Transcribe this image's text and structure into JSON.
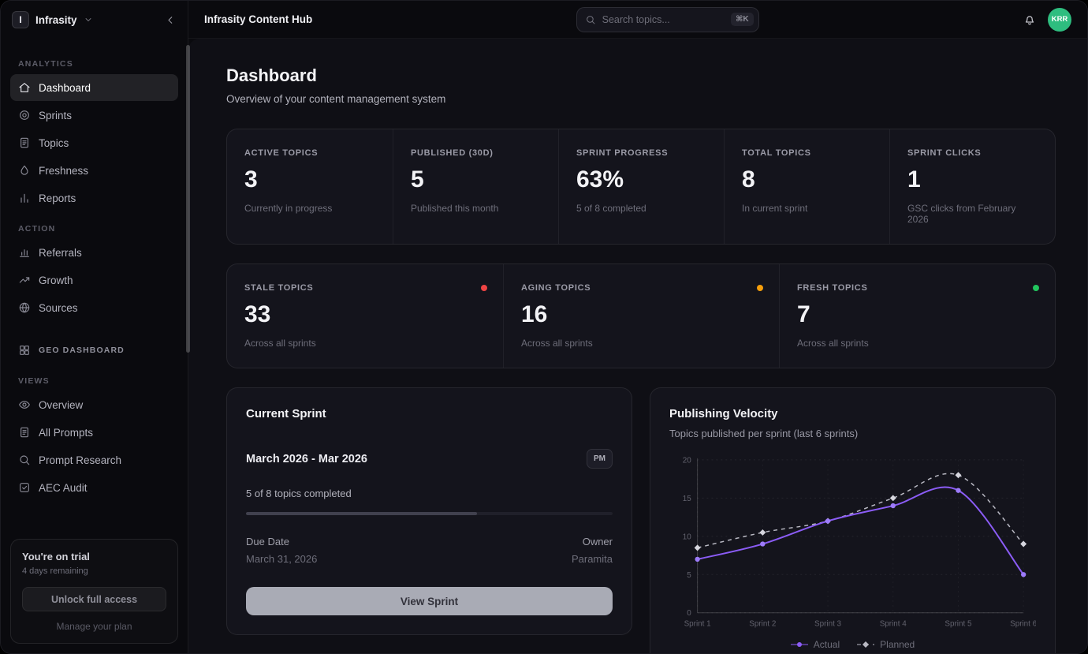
{
  "icons": {
    "search": "search",
    "bell": "bell",
    "workspace_chevron": "chevdown",
    "collapse": "chevleft"
  },
  "topbar": {
    "logo_letter": "I",
    "workspace": "Infrasity",
    "app_title": "Infrasity Content Hub",
    "search_placeholder": "Search topics...",
    "search_shortcut": "⌘K",
    "avatar": "KRR"
  },
  "sidebar": {
    "sections": [
      {
        "label": "ANALYTICS",
        "items": [
          {
            "label": "Dashboard",
            "icon": "home",
            "active": true
          },
          {
            "label": "Sprints",
            "icon": "target"
          },
          {
            "label": "Topics",
            "icon": "doc"
          },
          {
            "label": "Freshness",
            "icon": "drop"
          },
          {
            "label": "Reports",
            "icon": "bars"
          }
        ]
      },
      {
        "label": "ACTION",
        "items": [
          {
            "label": "Referrals",
            "icon": "chart"
          },
          {
            "label": "Growth",
            "icon": "trend"
          },
          {
            "label": "Sources",
            "icon": "globe"
          }
        ]
      }
    ],
    "geo": {
      "label": "GEO DASHBOARD",
      "icon": "grid"
    },
    "views": {
      "label": "VIEWS",
      "items": [
        {
          "label": "Overview",
          "icon": "eye"
        },
        {
          "label": "All Prompts",
          "icon": "doc"
        },
        {
          "label": "Prompt Research",
          "icon": "search"
        },
        {
          "label": "AEC Audit",
          "icon": "check"
        }
      ]
    },
    "trial": {
      "title": "You're on trial",
      "subtitle": "4 days remaining",
      "cta": "Unlock full access",
      "link": "Manage your plan"
    }
  },
  "page": {
    "title": "Dashboard",
    "subtitle": "Overview of your content management system"
  },
  "stats_row1": [
    {
      "label": "ACTIVE TOPICS",
      "value": "3",
      "caption": "Currently in progress"
    },
    {
      "label": "PUBLISHED (30D)",
      "value": "5",
      "caption": "Published this month"
    },
    {
      "label": "SPRINT PROGRESS",
      "value": "63%",
      "caption": "5 of 8 completed"
    },
    {
      "label": "TOTAL TOPICS",
      "value": "8",
      "caption": "In current sprint"
    },
    {
      "label": "SPRINT CLICKS",
      "value": "1",
      "caption": "GSC clicks from February 2026"
    }
  ],
  "stats_row2": [
    {
      "label": "STALE TOPICS",
      "value": "33",
      "caption": "Across all sprints",
      "dot": "#ef4444"
    },
    {
      "label": "AGING TOPICS",
      "value": "16",
      "caption": "Across all sprints",
      "dot": "#f59e0b"
    },
    {
      "label": "FRESH TOPICS",
      "value": "7",
      "caption": "Across all sprints",
      "dot": "#22c55e"
    }
  ],
  "current_sprint": {
    "title": "Current Sprint",
    "range": "March 2026 - Mar 2026",
    "badge": "PM",
    "progress_text": "5 of 8 topics completed",
    "progress_pct": 63,
    "due_label": "Due Date",
    "due_value": "March 31, 2026",
    "owner_label": "Owner",
    "owner_value": "Paramita",
    "button": "View Sprint"
  },
  "velocity": {
    "title": "Publishing Velocity",
    "subtitle": "Topics published per sprint (last 6 sprints)"
  },
  "chart_data": {
    "type": "line",
    "title": "Publishing Velocity",
    "subtitle": "Topics published per sprint (last 6 sprints)",
    "categories": [
      "Sprint 1",
      "Sprint 2",
      "Sprint 3",
      "Sprint 4",
      "Sprint 5",
      "Sprint 6"
    ],
    "series": [
      {
        "name": "Actual",
        "color": "#8b5cf6",
        "marker": "circle",
        "dash": null,
        "values": [
          7,
          9,
          12,
          14,
          16,
          5
        ]
      },
      {
        "name": "Planned",
        "color": "#b9b9c3",
        "marker": "diamond",
        "dash": "5,5",
        "values": [
          8.5,
          10.5,
          12,
          15,
          18,
          9
        ]
      }
    ],
    "ylim": [
      0,
      20
    ],
    "yticks": [
      0,
      5,
      10,
      15,
      20
    ],
    "grid": true,
    "legend_position": "bottom"
  }
}
